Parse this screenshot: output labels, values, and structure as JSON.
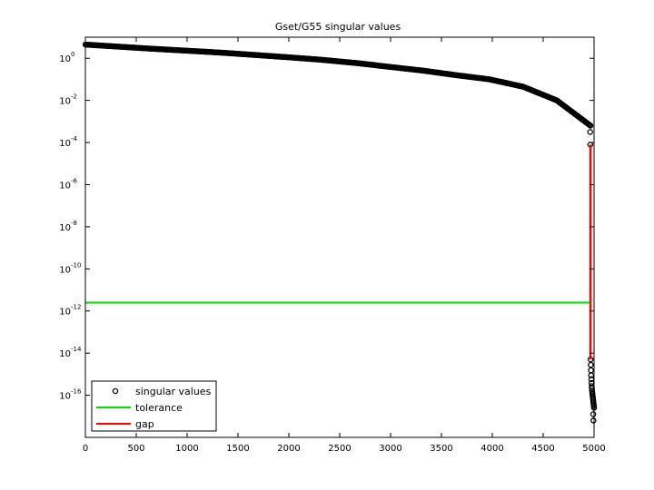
{
  "chart_data": {
    "type": "scatter",
    "title": "Gset/G55 singular values",
    "xlabel": "",
    "ylabel": "",
    "xlim": [
      0,
      5000
    ],
    "ylim_exponent": [
      -18,
      1
    ],
    "yscale": "log",
    "x_ticks": [
      "0",
      "500",
      "1000",
      "1500",
      "2000",
      "2500",
      "3000",
      "3500",
      "4000",
      "4500",
      "5000"
    ],
    "y_ticks": [
      {
        "base": "10",
        "exp": "0"
      },
      {
        "base": "10",
        "exp": "-2"
      },
      {
        "base": "10",
        "exp": "-4"
      },
      {
        "base": "10",
        "exp": "-6"
      },
      {
        "base": "10",
        "exp": "-8"
      },
      {
        "base": "10",
        "exp": "-10"
      },
      {
        "base": "10",
        "exp": "-12"
      },
      {
        "base": "10",
        "exp": "-14"
      },
      {
        "base": "10",
        "exp": "-16"
      }
    ],
    "grid": false,
    "legend_position": "bottom-left",
    "series": [
      {
        "name": "singular values",
        "marker": "circle",
        "color": "#000000",
        "segments": [
          {
            "x_start": 1,
            "x_end": 4965,
            "log10_y": [
              0.65,
              0.55,
              0.45,
              0.36,
              0.27,
              0.16,
              0.05,
              -0.07,
              -0.22,
              -0.4,
              -0.58,
              -0.8,
              -1.0,
              -1.35,
              -2.0,
              -3.2
            ]
          },
          {
            "x_start": 4966,
            "x_end": 5000,
            "log10_y": [
              -14.3,
              -15.0,
              -15.5,
              -15.8,
              -16.0,
              -16.2,
              -16.4,
              -16.6
            ]
          }
        ],
        "extra_points": [
          {
            "x": 4962,
            "log10_y": -3.5
          },
          {
            "x": 4963,
            "log10_y": -4.1
          },
          {
            "x": 4992,
            "log10_y": -16.9
          },
          {
            "x": 4994,
            "log10_y": -17.2
          }
        ]
      },
      {
        "name": "tolerance",
        "color": "#00dd00",
        "x": [
          1,
          4975
        ],
        "log10_y": [
          -11.6,
          -11.6
        ]
      },
      {
        "name": "gap",
        "color": "#ff0000",
        "x": [
          4965,
          4965
        ],
        "log10_y": [
          -4.1,
          -14.3
        ]
      }
    ]
  }
}
